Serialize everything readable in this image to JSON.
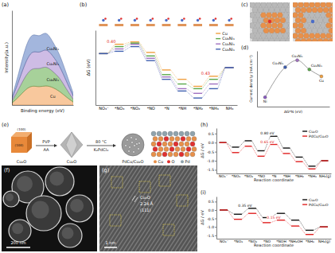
{
  "chart_data": [
    {
      "panel_label": "(a)",
      "type": "area",
      "stacked": true,
      "tick_labels": false,
      "xlabel": "Binding energy (eV)",
      "ylabel": "Intensity(a.u.)",
      "x": [
        0,
        1,
        2,
        3,
        4,
        5,
        6,
        7,
        8,
        9
      ],
      "xlim": [
        0,
        9
      ],
      "ylim": [
        0,
        48
      ],
      "series": [
        {
          "name": "Cu",
          "color": "#f3a35c",
          "values": [
            1,
            4,
            8,
            10,
            9,
            10,
            9,
            7,
            4,
            1.5
          ]
        },
        {
          "name": "Cu₉Ni₁",
          "color": "#6cb356",
          "values": [
            1,
            4,
            7,
            9,
            9,
            10,
            8,
            7,
            4,
            1.5
          ]
        },
        {
          "name": "Cu₄Ni₁",
          "color": "#ad8fd3",
          "values": [
            1,
            4,
            7,
            9,
            8,
            9,
            8,
            6,
            4,
            1.5
          ]
        },
        {
          "name": "Cu₃Ni₁",
          "color": "#6585c6",
          "values": [
            1,
            4,
            8,
            9,
            8,
            9,
            7,
            6,
            4,
            1.5
          ]
        }
      ]
    },
    {
      "panel_label": "(b)",
      "type": "step",
      "ylabel": "ΔG (eV)",
      "tick_labels": "x",
      "categories": [
        "NO₃⁻",
        "*NO₃",
        "*NO₂",
        "*NO",
        "*N",
        "*NH",
        "*NH₂",
        "*NH₃",
        "NH₃"
      ],
      "ylim": [
        -2.2,
        1.0
      ],
      "legend": "upper right",
      "series": [
        {
          "name": "Cu",
          "color": "#f0a040",
          "values": [
            0,
            0.4,
            0.5,
            0.05,
            -0.7,
            -1.1,
            -1.4,
            -0.97,
            -0.6
          ]
        },
        {
          "name": "Cu₉Ni₁",
          "color": "#5aa84a",
          "values": [
            0,
            0.3,
            0.45,
            -0.1,
            -0.9,
            -1.3,
            -1.5,
            -1.1,
            -0.6
          ]
        },
        {
          "name": "Cu₄Ni₁",
          "color": "#a070c0",
          "values": [
            0,
            0.2,
            0.4,
            -0.2,
            -1.0,
            -1.5,
            -1.7,
            -1.3,
            -0.6
          ]
        },
        {
          "name": "Cu₃Ni₁",
          "color": "#4060b0",
          "values": [
            0,
            0.1,
            0.3,
            -0.3,
            -1.1,
            -1.6,
            -1.9,
            -1.5,
            -0.6
          ]
        }
      ],
      "annotations": [
        {
          "text": "0.40",
          "series": 0,
          "step": 1,
          "color": "#e02020"
        },
        {
          "text": "0.43",
          "series": 0,
          "step": 7,
          "color": "#e02020"
        }
      ]
    },
    {
      "panel_label": "(d)",
      "type": "scatter",
      "xlabel": "ΔG*N (eV)",
      "ylabel": "Current density (mA cm⁻²)",
      "tick_labels": false,
      "x": [
        -1.4,
        -0.9,
        -0.6,
        -0.3,
        0.0
      ],
      "values": [
        0.2,
        0.85,
        1.0,
        0.8,
        0.65
      ],
      "point_labels": [
        "Ni",
        "Cu₃Ni₁",
        "Cu₄Ni₁",
        "Cu₉Ni₁",
        "Cu"
      ],
      "colors": [
        "#8a5cc0",
        "#4060b0",
        "#a070c0",
        "#5aa84a",
        "#f0a040"
      ],
      "xlim": [
        -1.6,
        0.2
      ],
      "ylim": [
        0,
        1.2
      ],
      "line_style": "solid",
      "marker": "circle"
    },
    {
      "panel_label": "(h)",
      "type": "step",
      "ylabel": "ΔG / eV",
      "xlabel": "Reaction coordinate",
      "categories": [
        "NO₃⁻",
        "*NO₃",
        "*NO₂",
        "*NO",
        "*N",
        "*NH",
        "*NH₂",
        "*NH₃",
        "NH₃(g)"
      ],
      "ylim": [
        -1.7,
        0.8
      ],
      "yticks": [
        0.5,
        {
          "value": 0,
          "label": "0.0"
        },
        -0.5,
        {
          "value": -1,
          "label": "-1.0"
        },
        -1.5
      ],
      "legend": "upper right",
      "series": [
        {
          "name": "Cu₂O",
          "color": "#111111",
          "values": [
            0,
            -0.25,
            0.1,
            -0.45,
            0.35,
            -0.3,
            -0.8,
            -1.3,
            -1.0
          ]
        },
        {
          "name": "PdCu/Cu₂O",
          "color": "#e02020",
          "values": [
            0,
            -0.55,
            -0.2,
            -0.75,
            -0.1,
            -0.6,
            -1.05,
            -1.45,
            -1.0
          ]
        }
      ],
      "annotations": [
        {
          "text": "0.80 eV",
          "series": 0,
          "step": 4,
          "color": "#111111"
        },
        {
          "text": "0.65 eV",
          "series": 1,
          "step": 4,
          "color": "#e02020"
        }
      ]
    },
    {
      "panel_label": "(i)",
      "type": "step",
      "ylabel": "ΔG / eV",
      "xlabel": "Reaction coordinate",
      "categories": [
        "NO₃⁻",
        "*NO₃",
        "*NO₂",
        "*NO",
        "*NOH",
        "*NH₂OH",
        "*NH₃",
        "NH₃(g)"
      ],
      "ylim": [
        -1.7,
        0.8
      ],
      "yticks": [
        0.5,
        {
          "value": 0,
          "label": "0.0"
        },
        -0.5,
        {
          "value": -1,
          "label": "-1.0"
        },
        -1.5
      ],
      "legend": "upper right",
      "series": [
        {
          "name": "Cu₂O",
          "color": "#111111",
          "values": [
            0,
            -0.25,
            0.1,
            -0.45,
            -0.2,
            -0.6,
            -1.2,
            -1.0
          ]
        },
        {
          "name": "PdCu/Cu₂O",
          "color": "#e02020",
          "values": [
            0,
            -0.55,
            -0.2,
            -0.75,
            -0.6,
            -0.95,
            -1.45,
            -1.0
          ]
        }
      ],
      "annotations": [
        {
          "text": "0.35 eV",
          "series": 0,
          "step": 2,
          "color": "#111111"
        },
        {
          "text": "0.15 eV",
          "series": 1,
          "step": 4,
          "color": "#e02020"
        }
      ]
    }
  ],
  "panel_c": {
    "panel_label": "(c)"
  },
  "panel_e": {
    "panel_label": "(e)",
    "precursor": "Cu₂O",
    "facets": [
      "(100)",
      "(100)"
    ],
    "step1": [
      "PVP",
      "AA"
    ],
    "intermediate": "Cu₂O",
    "step2": [
      "80 °C",
      "K₂PdCl₄"
    ],
    "product": "PdCu/Cu₂O",
    "atoms": [
      {
        "name": "Cu",
        "color": "#e8904a"
      },
      {
        "name": "O",
        "color": "#e03030"
      },
      {
        "name": "Pd",
        "color": "#8fa3ad"
      }
    ]
  },
  "panel_f": {
    "panel_label": "(f)",
    "scale_bar": "200 nm"
  },
  "panel_g": {
    "panel_label": "(g)",
    "phase": "Cu₂O",
    "d_spacing": "2.24 Å",
    "plane": "(111)",
    "scale_bar": "1 nm"
  }
}
